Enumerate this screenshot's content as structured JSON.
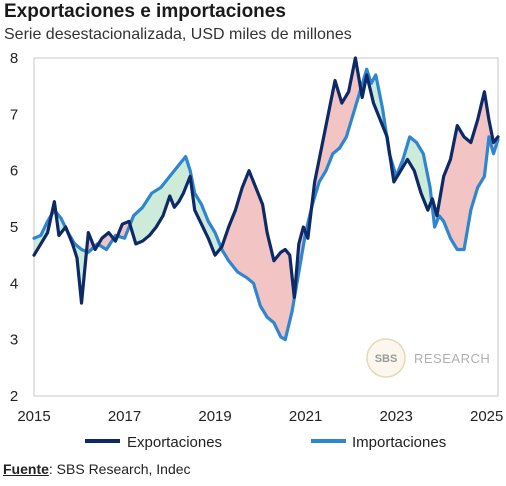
{
  "title": "Exportaciones e importaciones",
  "subtitle": "Serie desestacionalizada, USD miles de millones",
  "source": {
    "label": "Fuente",
    "text": ": SBS Research, Indec"
  },
  "watermark": {
    "logo_text": "SBS",
    "text": "RESEARCH"
  },
  "colors": {
    "exports": "#0d2a66",
    "imports": "#2f86d0",
    "fill_exports_above": "#f2c4c4",
    "fill_imports_above": "#cdebd9",
    "frame": "#c8c8c8"
  },
  "chart_data": {
    "type": "line",
    "xlim": [
      2015,
      2025.25
    ],
    "ylim": [
      2,
      8
    ],
    "x_ticks": [
      "2015",
      "2017",
      "2019",
      "2021",
      "2023",
      "2025"
    ],
    "y_ticks": [
      "2",
      "3",
      "4",
      "5",
      "6",
      "7",
      "8"
    ],
    "legend": "bottom",
    "series": [
      {
        "name": "Exportaciones",
        "x": [
          2015.0,
          2015.15,
          2015.3,
          2015.45,
          2015.55,
          2015.7,
          2015.85,
          2015.95,
          2016.05,
          2016.2,
          2016.35,
          2016.5,
          2016.65,
          2016.8,
          2016.95,
          2017.1,
          2017.25,
          2017.4,
          2017.55,
          2017.7,
          2017.85,
          2018.0,
          2018.1,
          2018.2,
          2018.3,
          2018.45,
          2018.55,
          2018.7,
          2018.85,
          2019.0,
          2019.15,
          2019.3,
          2019.45,
          2019.6,
          2019.75,
          2019.9,
          2020.05,
          2020.15,
          2020.3,
          2020.45,
          2020.55,
          2020.65,
          2020.75,
          2020.85,
          2020.95,
          2021.05,
          2021.2,
          2021.35,
          2021.5,
          2021.65,
          2021.8,
          2021.95,
          2022.1,
          2022.25,
          2022.35,
          2022.5,
          2022.65,
          2022.8,
          2022.95,
          2023.1,
          2023.25,
          2023.4,
          2023.55,
          2023.7,
          2023.8,
          2023.9,
          2024.05,
          2024.2,
          2024.35,
          2024.5,
          2024.65,
          2024.8,
          2024.95,
          2025.05,
          2025.15,
          2025.25
        ],
        "y": [
          4.5,
          4.7,
          4.9,
          5.45,
          4.85,
          5.0,
          4.7,
          4.45,
          3.65,
          4.9,
          4.6,
          4.8,
          4.9,
          4.75,
          5.05,
          5.1,
          4.7,
          4.75,
          4.85,
          5.0,
          5.2,
          5.55,
          5.35,
          5.45,
          5.6,
          5.9,
          5.3,
          5.05,
          4.8,
          4.5,
          4.65,
          5.0,
          5.3,
          5.7,
          6.0,
          5.7,
          5.4,
          4.9,
          4.4,
          4.55,
          4.6,
          4.5,
          3.75,
          4.7,
          5.0,
          4.8,
          5.8,
          6.4,
          7.0,
          7.6,
          7.2,
          7.4,
          8.0,
          7.3,
          7.7,
          7.2,
          6.9,
          6.6,
          5.8,
          6.0,
          6.2,
          6.0,
          5.6,
          5.3,
          5.5,
          5.2,
          5.9,
          6.2,
          6.8,
          6.6,
          6.5,
          6.9,
          7.4,
          6.9,
          6.5,
          6.6
        ]
      },
      {
        "name": "Importaciones",
        "x": [
          2015.0,
          2015.15,
          2015.3,
          2015.45,
          2015.6,
          2015.75,
          2015.9,
          2016.05,
          2016.2,
          2016.4,
          2016.6,
          2016.8,
          2017.0,
          2017.2,
          2017.4,
          2017.6,
          2017.8,
          2018.0,
          2018.2,
          2018.35,
          2018.45,
          2018.55,
          2018.7,
          2018.85,
          2019.0,
          2019.15,
          2019.3,
          2019.5,
          2019.7,
          2019.85,
          2020.0,
          2020.15,
          2020.3,
          2020.45,
          2020.55,
          2020.7,
          2020.85,
          2021.0,
          2021.15,
          2021.3,
          2021.45,
          2021.6,
          2021.75,
          2021.9,
          2022.05,
          2022.2,
          2022.35,
          2022.45,
          2022.55,
          2022.7,
          2022.85,
          2023.0,
          2023.15,
          2023.3,
          2023.45,
          2023.6,
          2023.75,
          2023.85,
          2023.95,
          2024.05,
          2024.2,
          2024.35,
          2024.5,
          2024.65,
          2024.8,
          2024.95,
          2025.05,
          2025.15,
          2025.25
        ],
        "y": [
          4.8,
          4.85,
          5.1,
          5.3,
          5.15,
          4.9,
          4.7,
          4.6,
          4.55,
          4.7,
          4.6,
          4.85,
          4.8,
          5.2,
          5.35,
          5.6,
          5.7,
          5.9,
          6.1,
          6.25,
          6.0,
          5.6,
          5.4,
          5.1,
          4.9,
          4.6,
          4.4,
          4.2,
          4.1,
          4.0,
          3.6,
          3.4,
          3.3,
          3.05,
          3.0,
          3.5,
          4.2,
          4.9,
          5.4,
          5.8,
          6.0,
          6.3,
          6.4,
          6.6,
          7.0,
          7.4,
          7.8,
          7.55,
          7.7,
          7.1,
          6.3,
          5.9,
          6.2,
          6.6,
          6.5,
          6.3,
          5.7,
          5.0,
          5.2,
          5.1,
          4.8,
          4.6,
          4.6,
          5.3,
          5.7,
          5.9,
          6.6,
          6.3,
          6.55
        ]
      }
    ]
  }
}
